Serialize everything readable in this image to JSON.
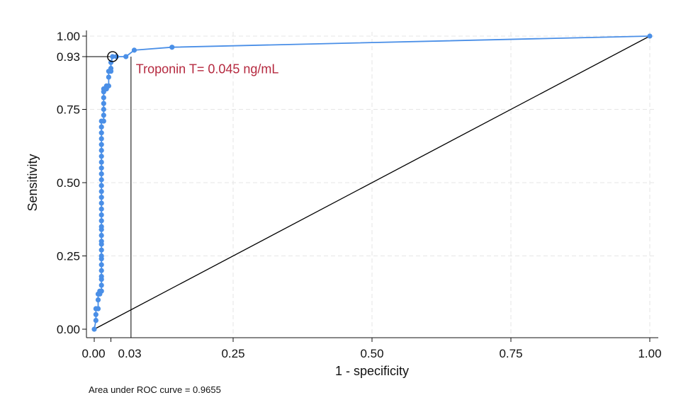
{
  "chart_data": {
    "type": "line",
    "xlabel": "1 - specificity",
    "ylabel": "Sensitivity",
    "xlim": [
      0,
      1
    ],
    "ylim": [
      0,
      1
    ],
    "x_ticks": [
      {
        "value": 0,
        "label": "0.00"
      },
      {
        "value": 0.03,
        "label": "0.03"
      },
      {
        "value": 0.25,
        "label": "0.25"
      },
      {
        "value": 0.5,
        "label": "0.50"
      },
      {
        "value": 0.75,
        "label": "0.75"
      },
      {
        "value": 1,
        "label": "1.00"
      }
    ],
    "y_ticks": [
      {
        "value": 0,
        "label": "0.00"
      },
      {
        "value": 0.25,
        "label": "0.25"
      },
      {
        "value": 0.5,
        "label": "0.50"
      },
      {
        "value": 0.75,
        "label": "0.75"
      },
      {
        "value": 0.93,
        "label": "0.93"
      },
      {
        "value": 1,
        "label": "1.00"
      }
    ],
    "grid": true,
    "series": [
      {
        "color": "#4a8fe7",
        "points": [
          [
            0,
            0
          ],
          [
            0.003,
            0.03
          ],
          [
            0.003,
            0.05
          ],
          [
            0.003,
            0.07
          ],
          [
            0.007,
            0.07
          ],
          [
            0.007,
            0.1
          ],
          [
            0.007,
            0.12
          ],
          [
            0.01,
            0.12
          ],
          [
            0.01,
            0.13
          ],
          [
            0.013,
            0.13
          ],
          [
            0.013,
            0.15
          ],
          [
            0.013,
            0.17
          ],
          [
            0.013,
            0.18
          ],
          [
            0.013,
            0.2
          ],
          [
            0.013,
            0.22
          ],
          [
            0.013,
            0.24
          ],
          [
            0.013,
            0.25
          ],
          [
            0.013,
            0.27
          ],
          [
            0.013,
            0.29
          ],
          [
            0.013,
            0.3
          ],
          [
            0.013,
            0.32
          ],
          [
            0.013,
            0.34
          ],
          [
            0.013,
            0.35
          ],
          [
            0.013,
            0.37
          ],
          [
            0.013,
            0.39
          ],
          [
            0.013,
            0.41
          ],
          [
            0.013,
            0.43
          ],
          [
            0.013,
            0.45
          ],
          [
            0.013,
            0.47
          ],
          [
            0.013,
            0.49
          ],
          [
            0.013,
            0.51
          ],
          [
            0.013,
            0.53
          ],
          [
            0.013,
            0.55
          ],
          [
            0.013,
            0.57
          ],
          [
            0.013,
            0.59
          ],
          [
            0.013,
            0.61
          ],
          [
            0.013,
            0.63
          ],
          [
            0.013,
            0.65
          ],
          [
            0.013,
            0.67
          ],
          [
            0.013,
            0.69
          ],
          [
            0.013,
            0.71
          ],
          [
            0.017,
            0.71
          ],
          [
            0.017,
            0.73
          ],
          [
            0.017,
            0.75
          ],
          [
            0.017,
            0.77
          ],
          [
            0.017,
            0.79
          ],
          [
            0.017,
            0.81
          ],
          [
            0.017,
            0.82
          ],
          [
            0.022,
            0.82
          ],
          [
            0.022,
            0.83
          ],
          [
            0.026,
            0.83
          ],
          [
            0.026,
            0.86
          ],
          [
            0.026,
            0.88
          ],
          [
            0.03,
            0.88
          ],
          [
            0.03,
            0.89
          ],
          [
            0.03,
            0.91
          ],
          [
            0.033,
            0.93
          ],
          [
            0.04,
            0.93
          ],
          [
            0.057,
            0.93
          ],
          [
            0.072,
            0.952
          ],
          [
            0.14,
            0.962
          ],
          [
            1,
            1
          ]
        ]
      }
    ],
    "reference_line": [
      [
        0,
        0
      ],
      [
        1,
        1
      ]
    ],
    "cutoff_point": {
      "x": 0.033,
      "y": 0.93
    },
    "annotations": [
      {
        "text": "Troponin T= 0.045 ng/mL",
        "x": 0.075,
        "y": 0.873,
        "color": "#b5293f"
      }
    ],
    "note": "Area under ROC curve = 0.9655"
  }
}
